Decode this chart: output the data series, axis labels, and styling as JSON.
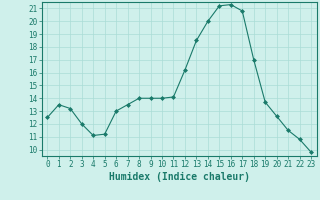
{
  "x": [
    0,
    1,
    2,
    3,
    4,
    5,
    6,
    7,
    8,
    9,
    10,
    11,
    12,
    13,
    14,
    15,
    16,
    17,
    18,
    19,
    20,
    21,
    22,
    23
  ],
  "y": [
    12.5,
    13.5,
    13.2,
    12.0,
    11.1,
    11.2,
    13.0,
    13.5,
    14.0,
    14.0,
    14.0,
    14.1,
    16.2,
    18.5,
    20.0,
    21.2,
    21.3,
    20.8,
    17.0,
    13.7,
    12.6,
    11.5,
    10.8,
    9.8
  ],
  "line_color": "#1a7a6a",
  "marker": "D",
  "marker_size": 2.0,
  "bg_color": "#cff0eb",
  "grid_color": "#aaddd6",
  "xlabel": "Humidex (Indice chaleur)",
  "xlim": [
    -0.5,
    23.5
  ],
  "ylim": [
    9.5,
    21.5
  ],
  "yticks": [
    10,
    11,
    12,
    13,
    14,
    15,
    16,
    17,
    18,
    19,
    20,
    21
  ],
  "xticks": [
    0,
    1,
    2,
    3,
    4,
    5,
    6,
    7,
    8,
    9,
    10,
    11,
    12,
    13,
    14,
    15,
    16,
    17,
    18,
    19,
    20,
    21,
    22,
    23
  ],
  "tick_label_fontsize": 5.5,
  "xlabel_fontsize": 7.0,
  "axis_color": "#1a7a6a",
  "linewidth": 0.8
}
